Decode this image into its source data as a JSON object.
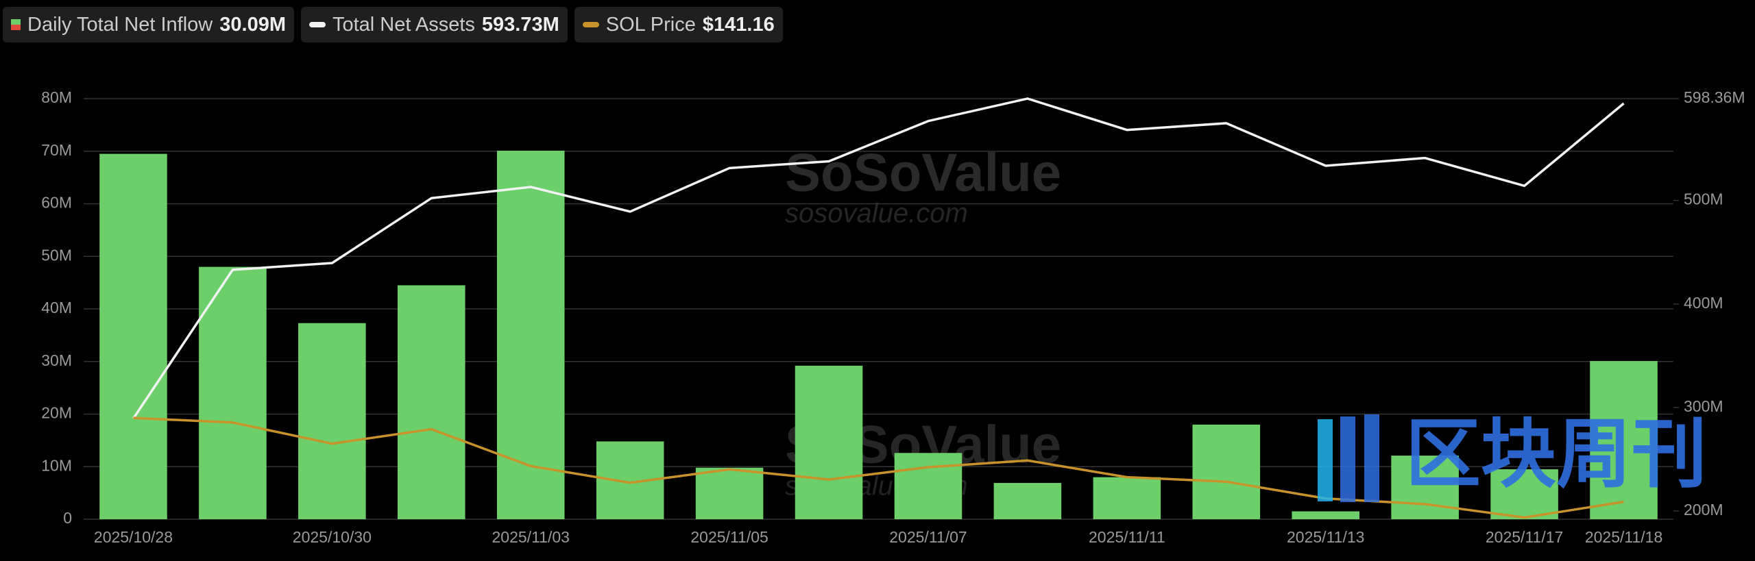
{
  "chart_data": {
    "type": "bar",
    "categories": [
      "2025/10/28",
      null,
      "2025/10/30",
      null,
      "2025/11/03",
      null,
      "2025/11/05",
      null,
      "2025/11/07",
      null,
      "2025/11/11",
      null,
      "2025/11/13",
      null,
      "2025/11/17",
      "2025/11/18"
    ],
    "ylim": [
      0,
      80
    ],
    "yticks": [
      0,
      {
        "value": 10,
        "label": "10M"
      },
      {
        "value": 20,
        "label": "20M"
      },
      {
        "value": 30,
        "label": "30M"
      },
      {
        "value": 40,
        "label": "40M"
      },
      {
        "value": 50,
        "label": "50M"
      },
      {
        "value": 60,
        "label": "60M"
      },
      {
        "value": 70,
        "label": "70M"
      },
      {
        "value": 80,
        "label": "80M"
      }
    ],
    "y2lim": [
      192,
      598.36
    ],
    "y2ticks": [
      {
        "value": 200,
        "label": "200M"
      },
      {
        "value": 300,
        "label": "300M"
      },
      {
        "value": 400,
        "label": "400M"
      },
      {
        "value": 500,
        "label": "500M"
      },
      {
        "value": 598.36,
        "label": "598.36M"
      }
    ],
    "y3lim": [
      130,
      400
    ],
    "grid": true,
    "series": [
      {
        "name": "Daily Total Net Inflow",
        "type": "bar",
        "color": "#6ccf6a",
        "header_value": "30.09M",
        "values": [
          69.5,
          48,
          37.3,
          44.5,
          70.1,
          14.8,
          9.8,
          29.2,
          12.6,
          6.9,
          8.0,
          18.0,
          1.5,
          12.1,
          9.5,
          30.09
        ]
      },
      {
        "name": "Total Net Assets",
        "type": "line",
        "axis": "y2",
        "color": "#f2f2f2",
        "header_value": "593.73M",
        "values": [
          289.3,
          433.0,
          439.5,
          502.2,
          513.0,
          489.2,
          531.3,
          537.8,
          576.7,
          598.4,
          568.1,
          574.6,
          533.5,
          541.0,
          514.1,
          593.73
        ]
      },
      {
        "name": "SOL Price",
        "type": "line",
        "axis": "y3",
        "color": "#c8922a",
        "header_value": "$141.16",
        "values": [
          195.0,
          192.1,
          178.5,
          187.8,
          164.1,
          153.4,
          162.0,
          155.5,
          163.4,
          167.7,
          157.0,
          154.1,
          143.3,
          139.7,
          131.1,
          141.16
        ]
      }
    ],
    "watermarks": [
      "SoSoValue",
      "sosovalue.com",
      "区块周刊"
    ]
  }
}
